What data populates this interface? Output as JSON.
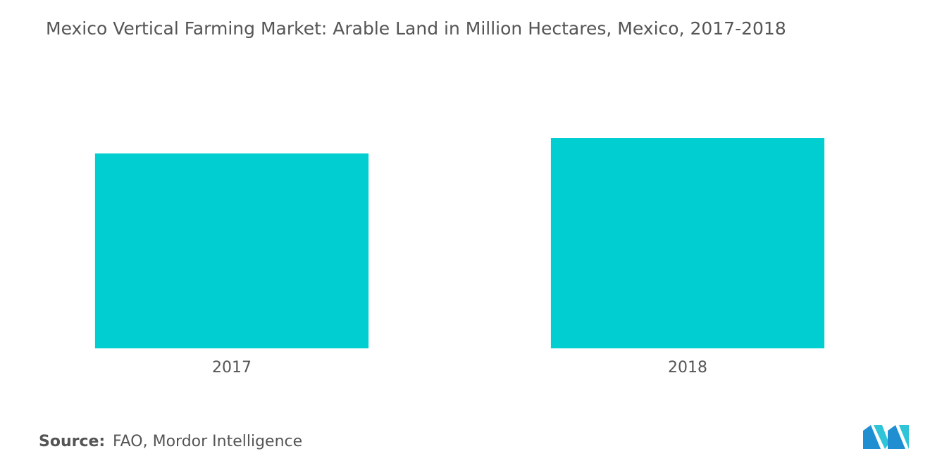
{
  "chart_data": {
    "type": "bar",
    "title": "Mexico Vertical Farming Market: Arable Land in Million Hectares, Mexico, 2017-2018",
    "categories": [
      "2017",
      "2018"
    ],
    "values": [
      21.3,
      23.0
    ],
    "color": "#00ced1",
    "ylim": [
      0,
      25
    ],
    "source_label": "Source:",
    "source": "FAO, Mordor Intelligence"
  }
}
